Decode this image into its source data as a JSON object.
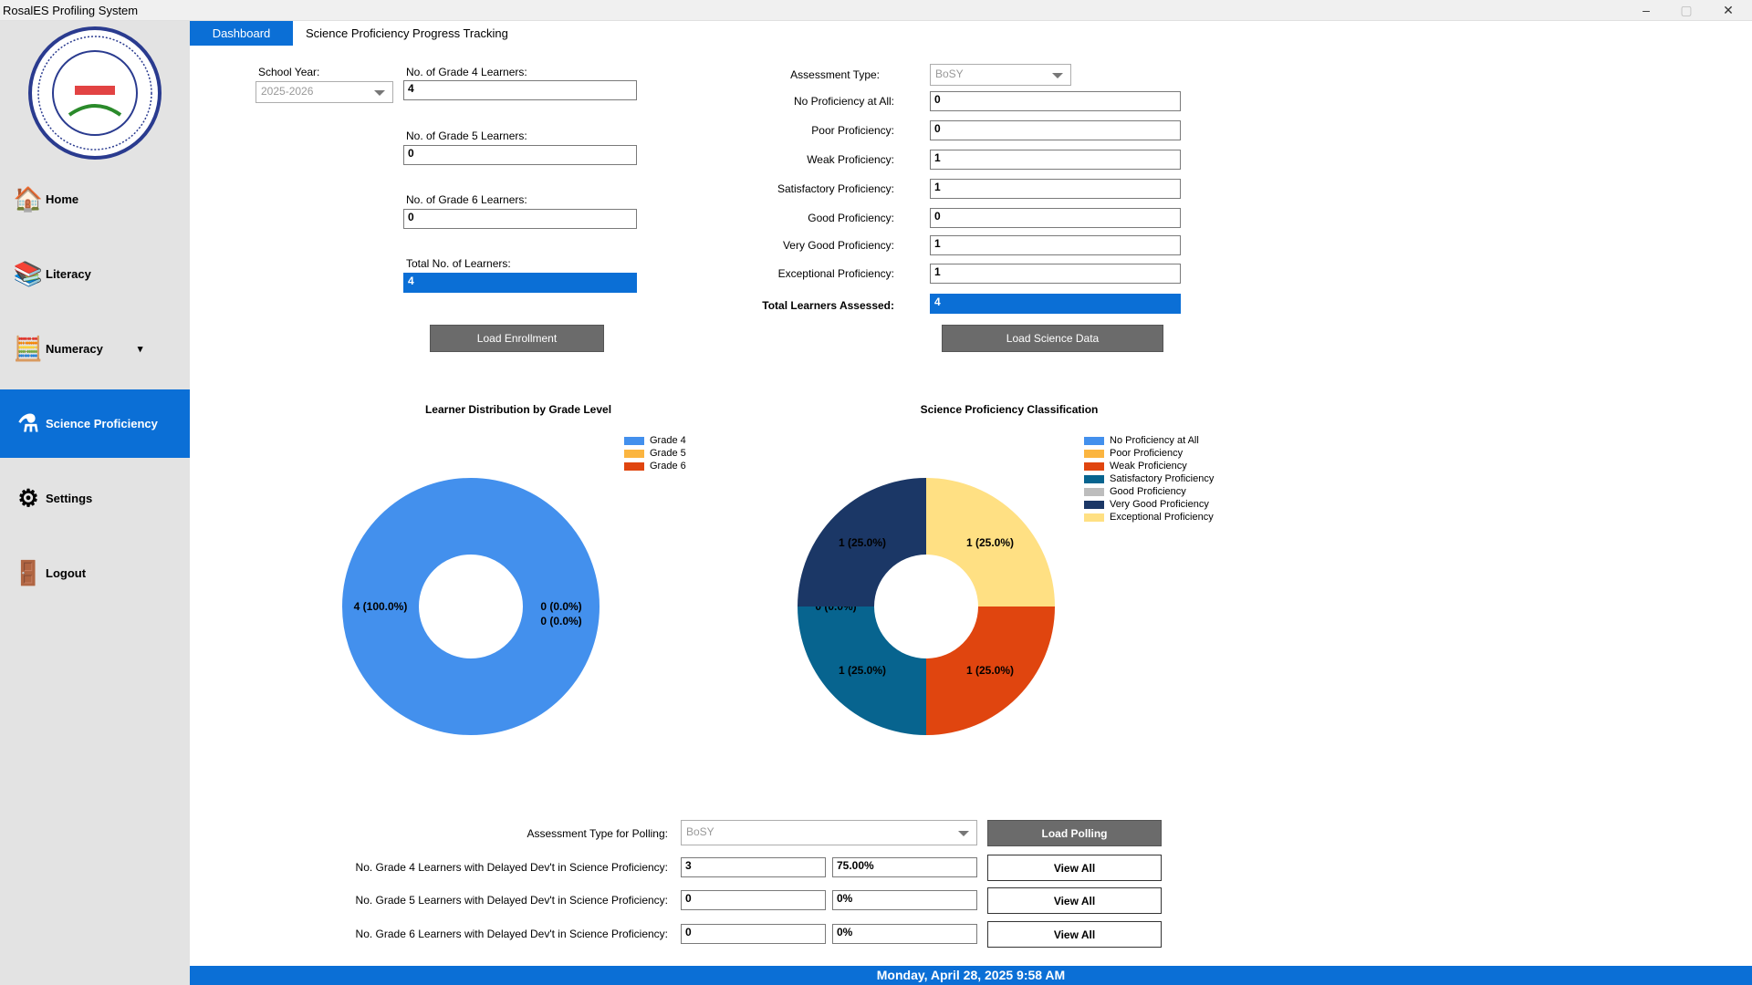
{
  "window": {
    "title": "RosalES Profiling System",
    "minimize": "–",
    "maximize": "▢",
    "close": "✕"
  },
  "sidebar": {
    "logo_text": "ROSAL ELEMENTARY SCHOOL • LIBACAO, AKLAN • DepED",
    "items": [
      {
        "label": "Home",
        "icon": "home-icon"
      },
      {
        "label": "Literacy",
        "icon": "books-icon"
      },
      {
        "label": "Numeracy",
        "icon": "abacus-icon",
        "caret": "▾"
      },
      {
        "label": "Science Proficiency",
        "icon": "science-icon",
        "selected": true
      },
      {
        "label": "Settings",
        "icon": "gear-icon"
      },
      {
        "label": "Logout",
        "icon": "logout-door-icon"
      }
    ]
  },
  "tabs": [
    {
      "label": "Dashboard",
      "active": true
    },
    {
      "label": "Science Proficiency Progress Tracking"
    }
  ],
  "enrollment": {
    "school_year_label": "School Year:",
    "school_year": "2025-2026",
    "g4_label": "No. of Grade 4 Learners:",
    "g4": "4",
    "g5_label": "No. of Grade 5 Learners:",
    "g5": "0",
    "g6_label": "No. of Grade 6 Learners:",
    "g6": "0",
    "total_label": "Total No. of Learners:",
    "total": "4",
    "load_button": "Load Enrollment"
  },
  "science": {
    "assessment_label": "Assessment Type:",
    "assessment": "BoSY",
    "rows": [
      {
        "label": "No Proficiency at All:",
        "value": "0"
      },
      {
        "label": "Poor Proficiency:",
        "value": "0"
      },
      {
        "label": "Weak Proficiency:",
        "value": "1"
      },
      {
        "label": "Satisfactory Proficiency:",
        "value": "1"
      },
      {
        "label": "Good Proficiency:",
        "value": "0"
      },
      {
        "label": "Very Good Proficiency:",
        "value": "1"
      },
      {
        "label": "Exceptional Proficiency:",
        "value": "1"
      }
    ],
    "total_label": "Total Learners Assessed:",
    "total": "4",
    "load_button": "Load Science Data"
  },
  "chart_data": [
    {
      "type": "pie",
      "title": "Learner Distribution by Grade Level",
      "donut": true,
      "legend": "right",
      "categories": [
        "Grade 4",
        "Grade 5",
        "Grade 6"
      ],
      "values": [
        4,
        0,
        0
      ],
      "labels": [
        "4 (100.0%)",
        "0 (0.0%)",
        "0 (0.0%)"
      ],
      "colors": [
        "#4390ed",
        "#fbb540",
        "#e0450f"
      ]
    },
    {
      "type": "pie",
      "title": "Science Proficiency Classification",
      "donut": true,
      "legend": "right",
      "categories": [
        "No Proficiency at All",
        "Poor Proficiency",
        "Weak Proficiency",
        "Satisfactory Proficiency",
        "Good Proficiency",
        "Very Good Proficiency",
        "Exceptional Proficiency"
      ],
      "values": [
        0,
        0,
        1,
        1,
        0,
        1,
        1
      ],
      "labels": [
        "0 (0.0%)",
        "0 (0.0%)",
        "1 (25.0%)",
        "1 (25.0%)",
        "0 (0.0%)",
        "1 (25.0%)",
        "1 (25.0%)"
      ],
      "colors": [
        "#4390ed",
        "#fbb540",
        "#e0450f",
        "#07648f",
        "#bdbdbd",
        "#1b3766",
        "#ffe083"
      ]
    }
  ],
  "polling": {
    "assessment_label": "Assessment Type for Polling:",
    "assessment": "BoSY",
    "load_button": "Load Polling",
    "rows": [
      {
        "label": "No. Grade 4 Learners with Delayed Dev't in Science Proficiency:",
        "count": "3",
        "percent": "75.00%",
        "button": "View All"
      },
      {
        "label": "No. Grade 5 Learners with Delayed Dev't in Science Proficiency:",
        "count": "0",
        "percent": "0%",
        "button": "View All"
      },
      {
        "label": "No. Grade 6 Learners with Delayed Dev't in Science Proficiency:",
        "count": "0",
        "percent": "0%",
        "button": "View All"
      }
    ]
  },
  "footer": {
    "datetime": "Monday, April 28, 2025 9:58 AM"
  }
}
